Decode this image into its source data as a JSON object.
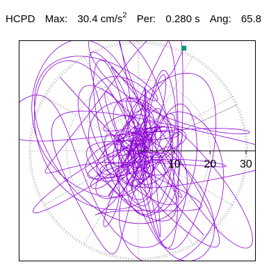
{
  "header": {
    "station": "HCPD",
    "max_label": "Max:",
    "max_value": "30.4",
    "max_unit": "cm/s",
    "max_unit_power": "2",
    "per_label": "Per:",
    "per_value": "0.280 s",
    "ang_label": "Ang:",
    "ang_value": "65.8"
  },
  "chart_data": {
    "type": "scatter",
    "subtype": "polar-particle-motion-trace",
    "title": "",
    "radial_ticks": [
      10,
      20,
      30
    ],
    "radial_max": 30.4,
    "angular_grid_step_deg": 30,
    "dotted_rings": [
      10,
      20,
      30
    ],
    "end_marker": {
      "x": 12.7,
      "y": 28.6,
      "color": "#009977"
    },
    "arrow": {
      "start": {
        "x": -21.8,
        "y": 20.5
      },
      "end": {
        "x": 18.2,
        "y": -23.5
      }
    },
    "angle_line_deg": 25,
    "trace_color": "#8a00d4",
    "grid_color": "#888888"
  }
}
